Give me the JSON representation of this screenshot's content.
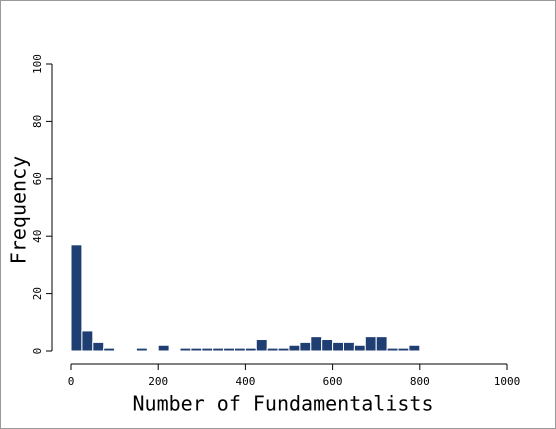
{
  "chart_data": {
    "type": "histogram",
    "x_label": "Number of Fundamentalists",
    "y_label": "Frequency",
    "bins": [
      0,
      25,
      50,
      75,
      100,
      125,
      150,
      175,
      200,
      225,
      250,
      275,
      300,
      325,
      350,
      375,
      400,
      425,
      450,
      475,
      500,
      525,
      550,
      575,
      600,
      625,
      650,
      675,
      700,
      725,
      750,
      775,
      800
    ],
    "values": [
      37,
      7,
      3,
      1,
      0,
      0,
      1,
      0,
      2,
      0,
      1,
      1,
      1,
      1,
      1,
      1,
      1,
      4,
      1,
      1,
      2,
      3,
      5,
      4,
      3,
      3,
      2,
      5,
      5,
      1,
      1,
      2
    ],
    "color": "#1f3f73",
    "xlim": [
      0,
      1000
    ],
    "xticks": [
      0,
      200,
      400,
      600,
      800,
      1000
    ],
    "ylim": [
      0,
      100
    ],
    "yticks": [
      0,
      20,
      40,
      60,
      80,
      100
    ]
  }
}
